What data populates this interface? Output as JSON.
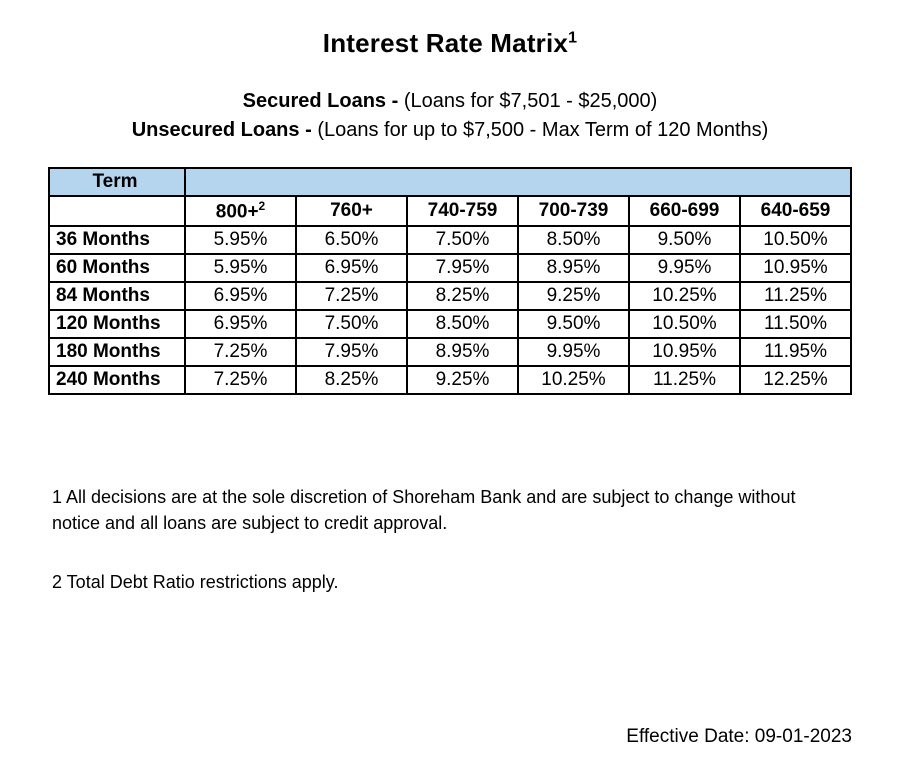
{
  "title": {
    "text": "Interest Rate Matrix",
    "sup": "1"
  },
  "subtitles": {
    "line1_bold": "Secured Loans - ",
    "line1_rest": "(Loans for $7,501 - $25,000)",
    "line2_bold": "Unsecured Loans - ",
    "line2_rest": "(Loans for up to $7,500 - Max Term of 120 Months)"
  },
  "table": {
    "type": "table",
    "header_bg": "#b5d5ef",
    "border_color": "#000000",
    "term_header": "Term",
    "score_headers": [
      {
        "label": "800+",
        "sup": "2"
      },
      {
        "label": "760+",
        "sup": ""
      },
      {
        "label": "740-759",
        "sup": ""
      },
      {
        "label": "700-739",
        "sup": ""
      },
      {
        "label": "660-699",
        "sup": ""
      },
      {
        "label": "640-659",
        "sup": ""
      }
    ],
    "rows": [
      {
        "term": "36 Months",
        "rates": [
          "5.95%",
          "6.50%",
          "7.50%",
          "8.50%",
          "9.50%",
          "10.50%"
        ]
      },
      {
        "term": "60 Months",
        "rates": [
          "5.95%",
          "6.95%",
          "7.95%",
          "8.95%",
          "9.95%",
          "10.95%"
        ]
      },
      {
        "term": "84 Months",
        "rates": [
          "6.95%",
          "7.25%",
          "8.25%",
          "9.25%",
          "10.25%",
          "11.25%"
        ]
      },
      {
        "term": "120 Months",
        "rates": [
          "6.95%",
          "7.50%",
          "8.50%",
          "9.50%",
          "10.50%",
          "11.50%"
        ]
      },
      {
        "term": "180 Months",
        "rates": [
          "7.25%",
          "7.95%",
          "8.95%",
          "9.95%",
          "10.95%",
          "11.95%"
        ]
      },
      {
        "term": "240 Months",
        "rates": [
          "7.25%",
          "8.25%",
          "9.25%",
          "10.25%",
          "11.25%",
          "12.25%"
        ]
      }
    ]
  },
  "footnotes": {
    "fn1": "1 All decisions are at the sole discretion of Shoreham Bank and are subject to change without notice and all loans are subject to credit approval.",
    "fn2": "2 Total Debt Ratio restrictions apply."
  },
  "effective_date_label": "Effective Date: ",
  "effective_date_value": "09-01-2023"
}
